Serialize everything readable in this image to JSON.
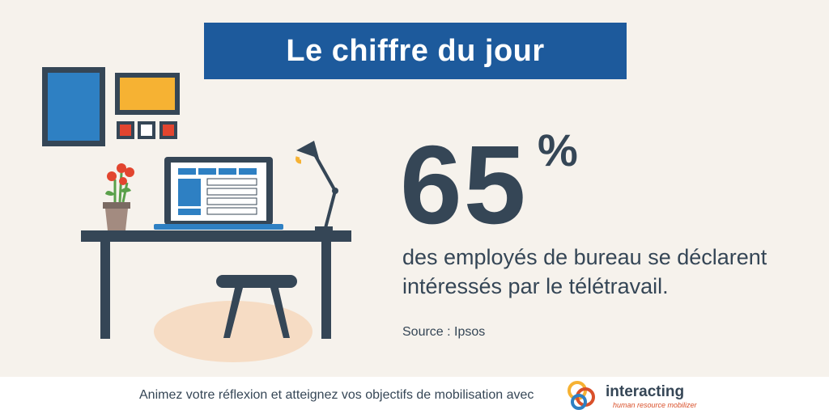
{
  "header": {
    "title": "Le chiffre du jour"
  },
  "stat": {
    "value": "65",
    "unit": "%",
    "description": "des employés de bureau se déclarent intéressés par le télétravail.",
    "source": "Source : Ipsos"
  },
  "footer": {
    "text": "Animez votre réflexion et atteignez vos objectifs de mobilisation avec",
    "brand_name": "interacting",
    "brand_tagline": "human resource mobilizer"
  },
  "colors": {
    "background": "#f6f2ec",
    "banner": "#1d5a9c",
    "text": "#354656",
    "accent_orange": "#f6b233",
    "accent_red": "#e2452f",
    "blue": "#2e80c3"
  },
  "icons": [
    "picture-frame-icon",
    "flower-pot-icon",
    "laptop-icon",
    "desk-lamp-icon",
    "desk-icon",
    "stool-icon",
    "interacting-logo-icon"
  ]
}
